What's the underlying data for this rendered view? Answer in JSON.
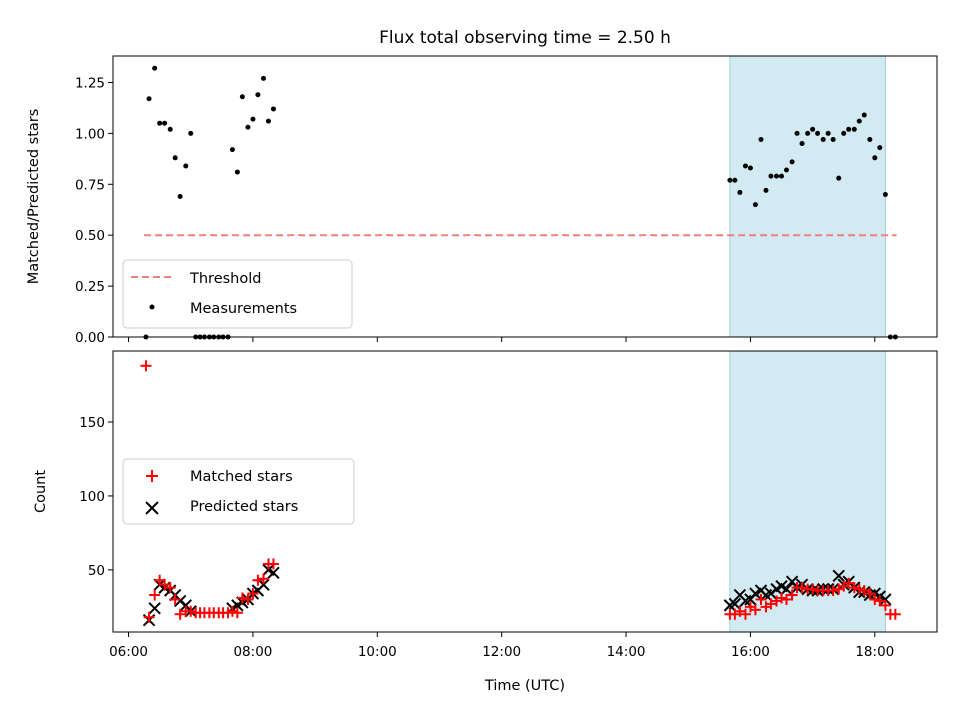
{
  "chart_data": {
    "title": "Flux total observing time = 2.50 h",
    "xlabel": "Time (UTC)",
    "x_unit": "hours UTC",
    "xlim": [
      5.75,
      19.0
    ],
    "x_ticks": [
      {
        "value": 6,
        "label": "06:00"
      },
      {
        "value": 8,
        "label": "08:00"
      },
      {
        "value": 10,
        "label": "10:00"
      },
      {
        "value": 12,
        "label": "12:00"
      },
      {
        "value": 14,
        "label": "14:00"
      },
      {
        "value": 16,
        "label": "16:00"
      },
      {
        "value": 18,
        "label": "18:00"
      }
    ],
    "highlight_span": {
      "x": [
        15.67,
        18.17
      ],
      "color": "#add8e6"
    },
    "panels": [
      {
        "id": "ratio",
        "type": "scatter",
        "ylabel": "Matched/Predicted stars",
        "ylim": [
          0.0,
          1.38
        ],
        "y_ticks": [
          "0.00",
          "0.25",
          "0.50",
          "0.75",
          "1.00",
          "1.25"
        ],
        "legend": {
          "position": "lower-left",
          "entries": [
            "Threshold",
            "Measurements"
          ]
        },
        "threshold": {
          "name": "Threshold",
          "y": 0.5,
          "x": [
            6.25,
            18.35
          ],
          "color": "#f07f7f"
        },
        "measurements": {
          "name": "Measurements",
          "color": "#000000",
          "points": [
            [
              6.28,
              0.0
            ],
            [
              6.33,
              1.17
            ],
            [
              6.42,
              1.32
            ],
            [
              6.5,
              1.05
            ],
            [
              6.58,
              1.05
            ],
            [
              6.67,
              1.02
            ],
            [
              6.75,
              0.88
            ],
            [
              6.83,
              0.69
            ],
            [
              6.92,
              0.84
            ],
            [
              7.0,
              1.0
            ],
            [
              7.08,
              0.0
            ],
            [
              7.15,
              0.0
            ],
            [
              7.22,
              0.0
            ],
            [
              7.3,
              0.0
            ],
            [
              7.37,
              0.0
            ],
            [
              7.45,
              0.0
            ],
            [
              7.52,
              0.0
            ],
            [
              7.6,
              0.0
            ],
            [
              7.67,
              0.92
            ],
            [
              7.75,
              0.81
            ],
            [
              7.83,
              1.18
            ],
            [
              7.92,
              1.03
            ],
            [
              8.0,
              1.07
            ],
            [
              8.08,
              1.19
            ],
            [
              8.17,
              1.27
            ],
            [
              8.25,
              1.06
            ],
            [
              8.33,
              1.12
            ],
            [
              15.67,
              0.77
            ],
            [
              15.75,
              0.77
            ],
            [
              15.83,
              0.71
            ],
            [
              15.92,
              0.84
            ],
            [
              16.0,
              0.83
            ],
            [
              16.08,
              0.65
            ],
            [
              16.17,
              0.97
            ],
            [
              16.25,
              0.72
            ],
            [
              16.33,
              0.79
            ],
            [
              16.42,
              0.79
            ],
            [
              16.5,
              0.79
            ],
            [
              16.58,
              0.82
            ],
            [
              16.67,
              0.86
            ],
            [
              16.75,
              1.0
            ],
            [
              16.83,
              0.95
            ],
            [
              16.92,
              1.0
            ],
            [
              17.0,
              1.02
            ],
            [
              17.08,
              1.0
            ],
            [
              17.17,
              0.97
            ],
            [
              17.25,
              1.0
            ],
            [
              17.33,
              0.97
            ],
            [
              17.42,
              0.78
            ],
            [
              17.5,
              1.0
            ],
            [
              17.58,
              1.02
            ],
            [
              17.67,
              1.02
            ],
            [
              17.75,
              1.06
            ],
            [
              17.83,
              1.09
            ],
            [
              17.92,
              0.97
            ],
            [
              18.0,
              0.88
            ],
            [
              18.08,
              0.93
            ],
            [
              18.17,
              0.7
            ],
            [
              18.25,
              0.0
            ],
            [
              18.33,
              0.0
            ]
          ]
        }
      },
      {
        "id": "counts",
        "type": "scatter",
        "ylabel": "Count",
        "ylim": [
          8,
          198
        ],
        "y_ticks": [
          "50",
          "100",
          "150"
        ],
        "legend": {
          "position": "center-left",
          "entries": [
            "Matched stars",
            "Predicted stars"
          ]
        },
        "matched": {
          "name": "Matched stars",
          "color": "#ff0000",
          "points": [
            [
              6.28,
              188
            ],
            [
              6.33,
              18
            ],
            [
              6.42,
              33
            ],
            [
              6.5,
              43
            ],
            [
              6.58,
              40
            ],
            [
              6.67,
              38
            ],
            [
              6.75,
              30
            ],
            [
              6.83,
              20
            ],
            [
              6.92,
              22
            ],
            [
              7.0,
              22
            ],
            [
              7.08,
              21
            ],
            [
              7.15,
              21
            ],
            [
              7.22,
              21
            ],
            [
              7.3,
              21
            ],
            [
              7.37,
              21
            ],
            [
              7.45,
              21
            ],
            [
              7.52,
              21
            ],
            [
              7.6,
              21
            ],
            [
              7.67,
              22
            ],
            [
              7.75,
              21
            ],
            [
              7.83,
              31
            ],
            [
              7.92,
              30
            ],
            [
              8.0,
              34
            ],
            [
              8.08,
              43
            ],
            [
              8.17,
              44
            ],
            [
              8.25,
              54
            ],
            [
              8.33,
              54
            ],
            [
              15.67,
              20
            ],
            [
              15.75,
              20
            ],
            [
              15.83,
              22
            ],
            [
              15.92,
              20
            ],
            [
              16.0,
              25
            ],
            [
              16.08,
              23
            ],
            [
              16.17,
              30
            ],
            [
              16.25,
              25
            ],
            [
              16.33,
              27
            ],
            [
              16.42,
              29
            ],
            [
              16.5,
              31
            ],
            [
              16.58,
              30
            ],
            [
              16.67,
              33
            ],
            [
              16.75,
              38
            ],
            [
              16.83,
              38
            ],
            [
              16.92,
              37
            ],
            [
              17.0,
              37
            ],
            [
              17.08,
              36
            ],
            [
              17.17,
              36
            ],
            [
              17.25,
              36
            ],
            [
              17.33,
              36
            ],
            [
              17.42,
              37
            ],
            [
              17.5,
              39
            ],
            [
              17.58,
              41
            ],
            [
              17.67,
              38
            ],
            [
              17.75,
              37
            ],
            [
              17.83,
              36
            ],
            [
              17.92,
              34
            ],
            [
              18.0,
              30
            ],
            [
              18.08,
              29
            ],
            [
              18.17,
              26
            ],
            [
              18.25,
              20
            ],
            [
              18.33,
              20
            ]
          ]
        },
        "predicted": {
          "name": "Predicted stars",
          "color": "#000000",
          "points": [
            [
              6.33,
              16
            ],
            [
              6.42,
              24
            ],
            [
              6.5,
              40
            ],
            [
              6.58,
              38
            ],
            [
              6.67,
              36
            ],
            [
              6.75,
              33
            ],
            [
              6.83,
              29
            ],
            [
              6.92,
              26
            ],
            [
              7.0,
              22
            ],
            [
              7.67,
              24
            ],
            [
              7.75,
              26
            ],
            [
              7.83,
              28
            ],
            [
              7.92,
              30
            ],
            [
              8.0,
              34
            ],
            [
              8.08,
              36
            ],
            [
              8.17,
              40
            ],
            [
              8.25,
              50
            ],
            [
              8.33,
              48
            ],
            [
              15.67,
              26
            ],
            [
              15.75,
              27
            ],
            [
              15.83,
              33
            ],
            [
              15.92,
              29
            ],
            [
              16.0,
              30
            ],
            [
              16.08,
              34
            ],
            [
              16.17,
              36
            ],
            [
              16.25,
              33
            ],
            [
              16.33,
              34
            ],
            [
              16.42,
              37
            ],
            [
              16.5,
              39
            ],
            [
              16.58,
              37
            ],
            [
              16.67,
              42
            ],
            [
              16.75,
              38
            ],
            [
              16.83,
              40
            ],
            [
              16.92,
              37
            ],
            [
              17.0,
              36
            ],
            [
              17.08,
              36
            ],
            [
              17.17,
              37
            ],
            [
              17.25,
              37
            ],
            [
              17.33,
              37
            ],
            [
              17.42,
              46
            ],
            [
              17.5,
              40
            ],
            [
              17.58,
              42
            ],
            [
              17.67,
              38
            ],
            [
              17.75,
              35
            ],
            [
              17.83,
              35
            ],
            [
              17.92,
              33
            ],
            [
              18.0,
              34
            ],
            [
              18.08,
              32
            ],
            [
              18.17,
              30
            ]
          ]
        }
      }
    ]
  }
}
